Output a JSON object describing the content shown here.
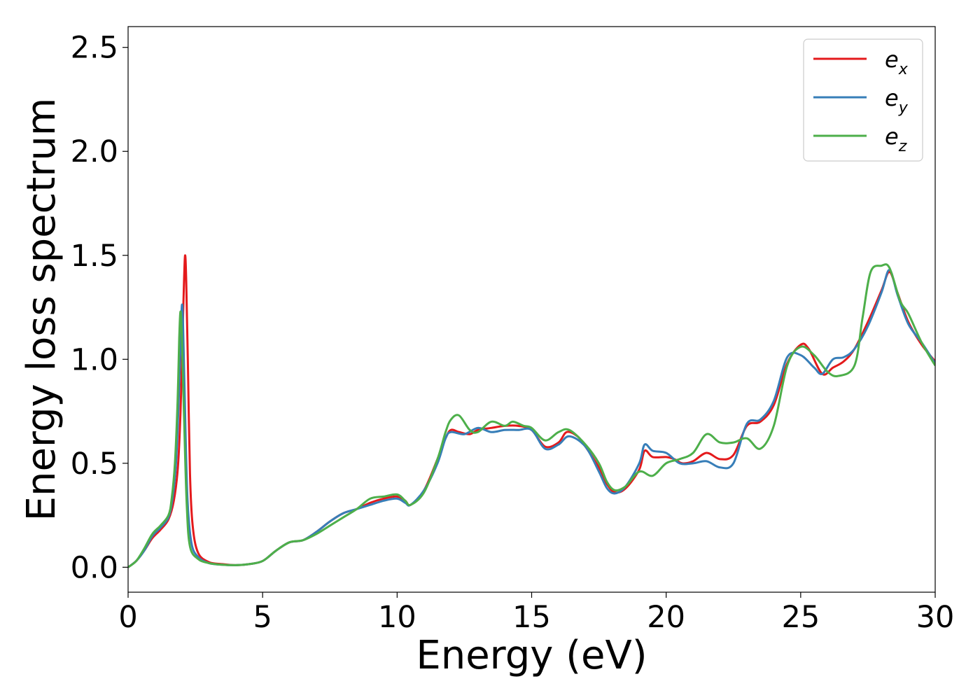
{
  "chart_data": {
    "type": "line",
    "title": "",
    "xlabel": "Energy (eV)",
    "ylabel": "Energy loss spectrum",
    "xlim": [
      0,
      30
    ],
    "ylim": [
      -0.12,
      2.6
    ],
    "xticks": [
      "0",
      "5",
      "10",
      "15",
      "20",
      "25",
      "30"
    ],
    "yticks": [
      "0.0",
      "0.5",
      "1.0",
      "1.5",
      "2.0",
      "2.5"
    ],
    "grid": false,
    "legend": {
      "placement": "top-right",
      "entries": [
        {
          "base": "e",
          "sub": "x",
          "color": "#e41a1c"
        },
        {
          "base": "e",
          "sub": "y",
          "color": "#377eb8"
        },
        {
          "base": "e",
          "sub": "z",
          "color": "#4daf4a"
        }
      ]
    },
    "series": [
      {
        "name": "e_x",
        "color": "#e41a1c",
        "points": [
          [
            0,
            0
          ],
          [
            0.3,
            0.03
          ],
          [
            0.6,
            0.08
          ],
          [
            0.9,
            0.14
          ],
          [
            1.2,
            0.18
          ],
          [
            1.5,
            0.23
          ],
          [
            1.7,
            0.32
          ],
          [
            1.85,
            0.48
          ],
          [
            1.95,
            0.75
          ],
          [
            2.02,
            1.1
          ],
          [
            2.08,
            1.38
          ],
          [
            2.12,
            1.5
          ],
          [
            2.16,
            1.38
          ],
          [
            2.22,
            1.0
          ],
          [
            2.3,
            0.45
          ],
          [
            2.4,
            0.2
          ],
          [
            2.6,
            0.07
          ],
          [
            3,
            0.025
          ],
          [
            3.5,
            0.015
          ],
          [
            4,
            0.01
          ],
          [
            4.5,
            0.015
          ],
          [
            5,
            0.03
          ],
          [
            5.5,
            0.08
          ],
          [
            6,
            0.12
          ],
          [
            6.5,
            0.13
          ],
          [
            7,
            0.17
          ],
          [
            7.5,
            0.22
          ],
          [
            8,
            0.26
          ],
          [
            8.5,
            0.28
          ],
          [
            9,
            0.31
          ],
          [
            9.5,
            0.33
          ],
          [
            10,
            0.34
          ],
          [
            10.3,
            0.32
          ],
          [
            10.5,
            0.3
          ],
          [
            11,
            0.37
          ],
          [
            11.5,
            0.52
          ],
          [
            11.8,
            0.62
          ],
          [
            12,
            0.66
          ],
          [
            12.3,
            0.65
          ],
          [
            12.7,
            0.64
          ],
          [
            13,
            0.66
          ],
          [
            13.5,
            0.67
          ],
          [
            14,
            0.68
          ],
          [
            14.5,
            0.68
          ],
          [
            15,
            0.66
          ],
          [
            15.5,
            0.58
          ],
          [
            16,
            0.6
          ],
          [
            16.3,
            0.65
          ],
          [
            16.7,
            0.63
          ],
          [
            17,
            0.58
          ],
          [
            17.5,
            0.48
          ],
          [
            17.8,
            0.4
          ],
          [
            18.1,
            0.36
          ],
          [
            18.5,
            0.38
          ],
          [
            19,
            0.47
          ],
          [
            19.2,
            0.56
          ],
          [
            19.5,
            0.53
          ],
          [
            20,
            0.53
          ],
          [
            20.3,
            0.52
          ],
          [
            20.6,
            0.5
          ],
          [
            21,
            0.51
          ],
          [
            21.5,
            0.55
          ],
          [
            22,
            0.52
          ],
          [
            22.5,
            0.54
          ],
          [
            23,
            0.68
          ],
          [
            23.5,
            0.7
          ],
          [
            24,
            0.78
          ],
          [
            24.5,
            0.98
          ],
          [
            25,
            1.07
          ],
          [
            25.3,
            1.05
          ],
          [
            25.8,
            0.93
          ],
          [
            26.2,
            0.96
          ],
          [
            26.6,
            0.99
          ],
          [
            27,
            1.05
          ],
          [
            27.5,
            1.18
          ],
          [
            28,
            1.33
          ],
          [
            28.3,
            1.42
          ],
          [
            28.6,
            1.32
          ],
          [
            29,
            1.18
          ],
          [
            29.5,
            1.07
          ],
          [
            30,
            0.99
          ]
        ]
      },
      {
        "name": "e_y",
        "color": "#377eb8",
        "points": [
          [
            0,
            0
          ],
          [
            0.3,
            0.03
          ],
          [
            0.6,
            0.08
          ],
          [
            0.9,
            0.15
          ],
          [
            1.2,
            0.19
          ],
          [
            1.5,
            0.24
          ],
          [
            1.65,
            0.33
          ],
          [
            1.78,
            0.5
          ],
          [
            1.88,
            0.8
          ],
          [
            1.95,
            1.1
          ],
          [
            2.0,
            1.26
          ],
          [
            2.04,
            1.18
          ],
          [
            2.1,
            0.85
          ],
          [
            2.2,
            0.35
          ],
          [
            2.35,
            0.12
          ],
          [
            2.6,
            0.05
          ],
          [
            3,
            0.02
          ],
          [
            3.5,
            0.012
          ],
          [
            4,
            0.01
          ],
          [
            4.5,
            0.015
          ],
          [
            5,
            0.03
          ],
          [
            5.5,
            0.08
          ],
          [
            6,
            0.12
          ],
          [
            6.5,
            0.13
          ],
          [
            7,
            0.17
          ],
          [
            7.5,
            0.22
          ],
          [
            8,
            0.26
          ],
          [
            8.5,
            0.28
          ],
          [
            9,
            0.3
          ],
          [
            9.5,
            0.32
          ],
          [
            10,
            0.33
          ],
          [
            10.3,
            0.31
          ],
          [
            10.5,
            0.3
          ],
          [
            11,
            0.37
          ],
          [
            11.5,
            0.5
          ],
          [
            11.8,
            0.62
          ],
          [
            12,
            0.65
          ],
          [
            12.5,
            0.64
          ],
          [
            13,
            0.67
          ],
          [
            13.5,
            0.65
          ],
          [
            14,
            0.66
          ],
          [
            14.5,
            0.66
          ],
          [
            15,
            0.66
          ],
          [
            15.5,
            0.57
          ],
          [
            16,
            0.59
          ],
          [
            16.4,
            0.63
          ],
          [
            17,
            0.58
          ],
          [
            17.5,
            0.46
          ],
          [
            17.8,
            0.38
          ],
          [
            18.1,
            0.355
          ],
          [
            18.5,
            0.39
          ],
          [
            19,
            0.5
          ],
          [
            19.2,
            0.59
          ],
          [
            19.5,
            0.56
          ],
          [
            20,
            0.55
          ],
          [
            20.5,
            0.5
          ],
          [
            21,
            0.5
          ],
          [
            21.5,
            0.51
          ],
          [
            22,
            0.48
          ],
          [
            22.5,
            0.5
          ],
          [
            23,
            0.69
          ],
          [
            23.5,
            0.71
          ],
          [
            24,
            0.8
          ],
          [
            24.5,
            1.01
          ],
          [
            25,
            1.02
          ],
          [
            25.5,
            0.96
          ],
          [
            25.8,
            0.93
          ],
          [
            26.2,
            1.0
          ],
          [
            26.6,
            1.01
          ],
          [
            27,
            1.05
          ],
          [
            27.5,
            1.16
          ],
          [
            28,
            1.32
          ],
          [
            28.3,
            1.43
          ],
          [
            28.6,
            1.31
          ],
          [
            29,
            1.17
          ],
          [
            29.5,
            1.08
          ],
          [
            30,
            0.98
          ]
        ]
      },
      {
        "name": "e_z",
        "color": "#4daf4a",
        "points": [
          [
            0,
            0
          ],
          [
            0.3,
            0.03
          ],
          [
            0.6,
            0.09
          ],
          [
            0.9,
            0.16
          ],
          [
            1.2,
            0.2
          ],
          [
            1.5,
            0.25
          ],
          [
            1.62,
            0.33
          ],
          [
            1.74,
            0.5
          ],
          [
            1.84,
            0.8
          ],
          [
            1.9,
            1.1
          ],
          [
            1.95,
            1.23
          ],
          [
            2.0,
            1.1
          ],
          [
            2.08,
            0.72
          ],
          [
            2.18,
            0.3
          ],
          [
            2.3,
            0.1
          ],
          [
            2.6,
            0.04
          ],
          [
            3,
            0.02
          ],
          [
            3.5,
            0.012
          ],
          [
            4,
            0.01
          ],
          [
            4.5,
            0.015
          ],
          [
            5,
            0.03
          ],
          [
            5.5,
            0.08
          ],
          [
            6,
            0.12
          ],
          [
            6.5,
            0.13
          ],
          [
            7,
            0.16
          ],
          [
            7.5,
            0.2
          ],
          [
            8,
            0.24
          ],
          [
            8.5,
            0.28
          ],
          [
            9,
            0.33
          ],
          [
            9.5,
            0.34
          ],
          [
            10,
            0.35
          ],
          [
            10.3,
            0.32
          ],
          [
            10.5,
            0.3
          ],
          [
            11,
            0.36
          ],
          [
            11.5,
            0.52
          ],
          [
            11.8,
            0.65
          ],
          [
            12,
            0.71
          ],
          [
            12.3,
            0.73
          ],
          [
            12.7,
            0.66
          ],
          [
            13,
            0.65
          ],
          [
            13.5,
            0.7
          ],
          [
            14,
            0.68
          ],
          [
            14.3,
            0.7
          ],
          [
            14.7,
            0.68
          ],
          [
            15,
            0.67
          ],
          [
            15.5,
            0.61
          ],
          [
            16,
            0.65
          ],
          [
            16.4,
            0.66
          ],
          [
            17,
            0.59
          ],
          [
            17.5,
            0.5
          ],
          [
            17.8,
            0.41
          ],
          [
            18.1,
            0.37
          ],
          [
            18.5,
            0.39
          ],
          [
            19,
            0.46
          ],
          [
            19.5,
            0.44
          ],
          [
            20,
            0.5
          ],
          [
            20.5,
            0.52
          ],
          [
            21,
            0.55
          ],
          [
            21.5,
            0.64
          ],
          [
            22,
            0.6
          ],
          [
            22.5,
            0.6
          ],
          [
            23,
            0.62
          ],
          [
            23.5,
            0.57
          ],
          [
            24,
            0.68
          ],
          [
            24.5,
            0.97
          ],
          [
            25,
            1.06
          ],
          [
            25.5,
            1.02
          ],
          [
            26,
            0.94
          ],
          [
            26.4,
            0.92
          ],
          [
            27,
            0.97
          ],
          [
            27.3,
            1.2
          ],
          [
            27.6,
            1.42
          ],
          [
            28,
            1.45
          ],
          [
            28.3,
            1.44
          ],
          [
            28.7,
            1.28
          ],
          [
            29,
            1.22
          ],
          [
            29.5,
            1.08
          ],
          [
            30,
            0.97
          ]
        ]
      }
    ]
  }
}
